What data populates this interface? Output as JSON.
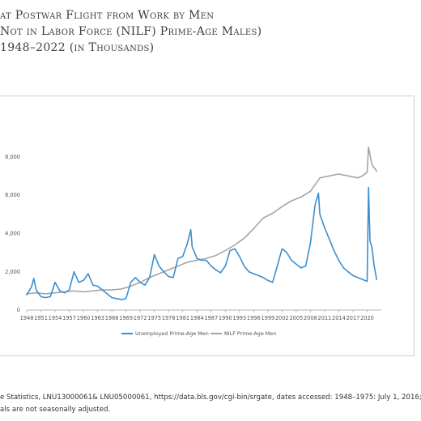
{
  "figure": {
    "title_lines": [
      "at Postwar Flight from Work by Men",
      "Not in Labor Force (NILF) Prime-Age Males)",
      "1948–2022 (in Thousands)"
    ],
    "source_lines": [
      "e Statistics, LNU13000061& LNU05000061, https://data.bls.gov/cgi-bin/srgate, dates accessed: 1948–1975: July 1, 2016;",
      "als are not seasonally adjusted."
    ]
  },
  "chart_data": {
    "type": "line",
    "title": "",
    "xlabel": "",
    "ylabel": "",
    "xlim": [
      1948,
      2023
    ],
    "ylim": [
      0,
      9000
    ],
    "yticks": [
      0,
      2000,
      4000,
      6000,
      8000
    ],
    "ytick_labels": [
      "0",
      "2,000",
      "4,000",
      "6,000",
      "8,000"
    ],
    "xticks": [
      1948,
      1951,
      1954,
      1957,
      1960,
      1963,
      1966,
      1969,
      1972,
      1975,
      1978,
      1981,
      1984,
      1987,
      1990,
      1993,
      1996,
      1999,
      2002,
      2005,
      2008,
      2011,
      2014,
      2017,
      2020
    ],
    "legend_position": "bottom",
    "grid": false,
    "series": [
      {
        "name": "Unemployed Prime-Age Men",
        "color": "#3a8fd0",
        "x": [
          1948,
          1949,
          1949.5,
          1950,
          1951,
          1952,
          1953,
          1954,
          1955,
          1956,
          1957,
          1958,
          1959,
          1960,
          1961,
          1962,
          1963,
          1964,
          1965,
          1966,
          1967,
          1968,
          1969,
          1970,
          1971,
          1972,
          1973,
          1974,
          1975,
          1976,
          1977,
          1978,
          1979,
          1980,
          1981,
          1982,
          1982.7,
          1983,
          1984,
          1985,
          1986,
          1987,
          1988,
          1989,
          1990,
          1991,
          1992,
          1993,
          1994,
          1995,
          1996,
          1997,
          1998,
          1999,
          2000,
          2001,
          2002,
          2003,
          2004,
          2005,
          2006,
          2007,
          2008,
          2009,
          2009.7,
          2010,
          2011,
          2012,
          2013,
          2014,
          2015,
          2016,
          2017,
          2018,
          2019,
          2020,
          2020.3,
          2020.6,
          2021,
          2021.5,
          2022
        ],
        "values": [
          800,
          1200,
          1650,
          1050,
          700,
          650,
          700,
          1450,
          1000,
          900,
          1050,
          2000,
          1450,
          1550,
          1900,
          1300,
          1250,
          1050,
          850,
          650,
          600,
          550,
          600,
          1450,
          1700,
          1450,
          1300,
          1700,
          2900,
          2300,
          2000,
          1750,
          1700,
          2700,
          2800,
          3500,
          4200,
          3300,
          2700,
          2600,
          2600,
          2300,
          2100,
          1950,
          2300,
          3100,
          3200,
          2800,
          2300,
          2000,
          1900,
          1800,
          1700,
          1550,
          1450,
          2300,
          3200,
          3000,
          2600,
          2400,
          2200,
          2300,
          3500,
          5500,
          6100,
          5000,
          4300,
          3700,
          3100,
          2600,
          2200,
          2000,
          1800,
          1700,
          1600,
          1500,
          6400,
          3600,
          3300,
          2300,
          1600
        ]
      },
      {
        "name": "NILF Prime-Age Men",
        "color": "#a5a5a5",
        "x": [
          1948,
          1950,
          1952,
          1954,
          1956,
          1958,
          1960,
          1962,
          1964,
          1966,
          1968,
          1970,
          1972,
          1974,
          1976,
          1978,
          1980,
          1982,
          1984,
          1986,
          1988,
          1990,
          1992,
          1994,
          1996,
          1998,
          2000,
          2002,
          2004,
          2006,
          2008,
          2010,
          2012,
          2014,
          2016,
          2018,
          2019,
          2020,
          2020.3,
          2021,
          2022
        ],
        "values": [
          850,
          900,
          850,
          900,
          950,
          1000,
          950,
          1000,
          1050,
          1050,
          1100,
          1250,
          1450,
          1700,
          1900,
          2100,
          2300,
          2500,
          2600,
          2700,
          2850,
          3100,
          3400,
          3750,
          4250,
          4800,
          5050,
          5400,
          5700,
          5900,
          6200,
          6900,
          7000,
          7100,
          7000,
          6900,
          7000,
          7200,
          8500,
          7600,
          7250
        ]
      }
    ]
  }
}
